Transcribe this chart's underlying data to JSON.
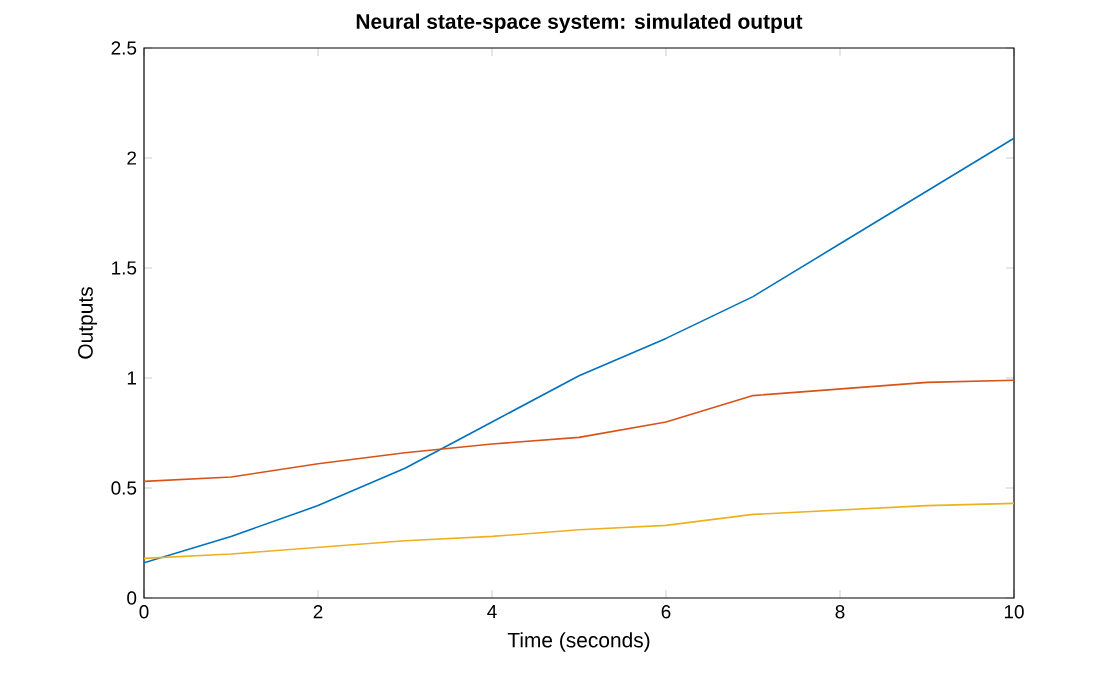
{
  "chart_data": {
    "type": "line",
    "title": "Neural state-space system: simulated output",
    "xlabel": "Time (seconds)",
    "ylabel": "Outputs",
    "x": [
      0,
      1,
      2,
      3,
      4,
      5,
      6,
      7,
      8,
      9,
      10
    ],
    "xlim": [
      0,
      10
    ],
    "ylim": [
      0,
      2.5
    ],
    "xticks": [
      0,
      2,
      4,
      6,
      8,
      10
    ],
    "yticks": [
      0,
      0.5,
      1,
      1.5,
      2,
      2.5
    ],
    "grid": false,
    "series": [
      {
        "color": "#0072bd",
        "values": [
          0.16,
          0.28,
          0.42,
          0.59,
          0.8,
          1.01,
          1.18,
          1.37,
          1.61,
          1.85,
          2.09
        ]
      },
      {
        "color": "#d95319",
        "values": [
          0.53,
          0.55,
          0.61,
          0.66,
          0.7,
          0.73,
          0.8,
          0.92,
          0.95,
          0.98,
          0.99
        ]
      },
      {
        "color": "#edb120",
        "values": [
          0.18,
          0.2,
          0.23,
          0.26,
          0.28,
          0.31,
          0.33,
          0.38,
          0.4,
          0.42,
          0.43
        ]
      }
    ]
  }
}
